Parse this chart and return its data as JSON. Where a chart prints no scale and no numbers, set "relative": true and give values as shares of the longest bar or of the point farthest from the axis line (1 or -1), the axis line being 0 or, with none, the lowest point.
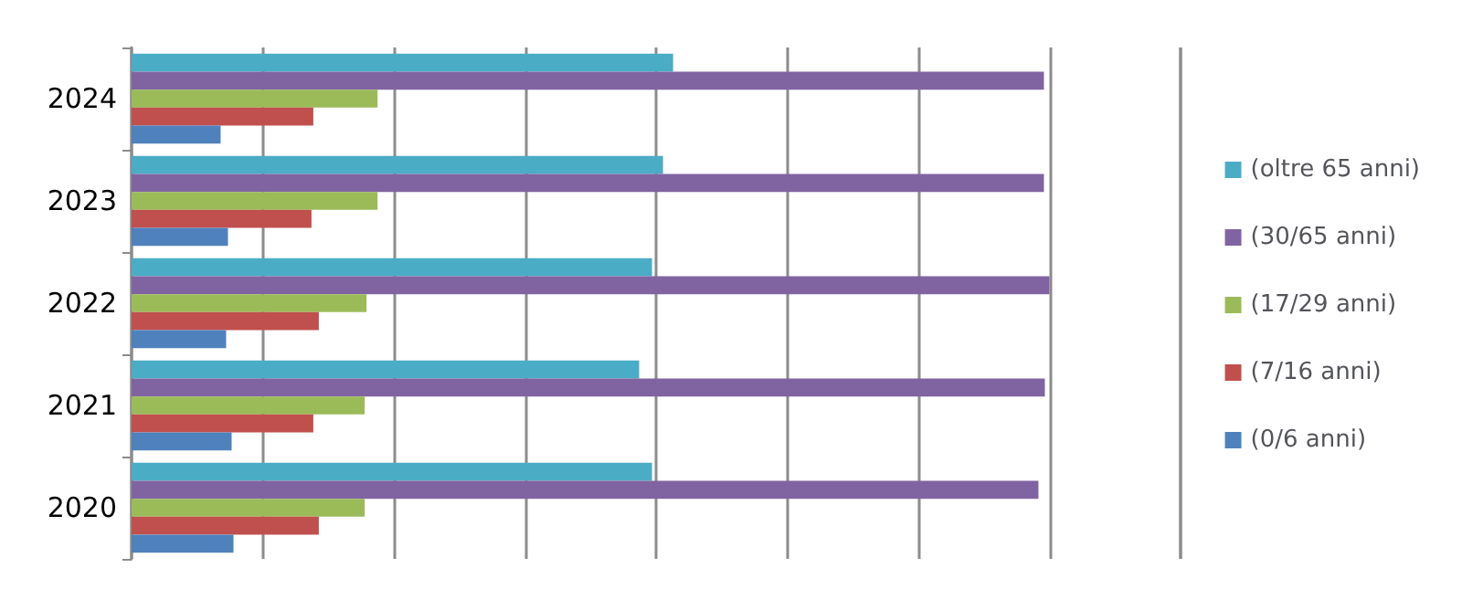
{
  "chart_data": {
    "type": "bar",
    "orientation": "horizontal",
    "relative": true,
    "grid": "x",
    "legend": "right",
    "categories": [
      "2024",
      "2023",
      "2022",
      "2021",
      "2020"
    ],
    "series": [
      {
        "name": "(oltre 65 anni)",
        "color": "#4bacc6",
        "values": [
          0.59,
          0.579,
          0.567,
          0.553,
          0.567
        ]
      },
      {
        "name": "(30/65 anni)",
        "color": "#8064a2",
        "values": [
          0.994,
          0.994,
          1,
          0.995,
          0.988
        ]
      },
      {
        "name": "(17/29 anni)",
        "color": "#9bbb59",
        "values": [
          0.268,
          0.268,
          0.256,
          0.254,
          0.254
        ]
      },
      {
        "name": "(7/16 anni)",
        "color": "#c0504d",
        "values": [
          0.198,
          0.196,
          0.204,
          0.198,
          0.204
        ]
      },
      {
        "name": "(0/6 anni)",
        "color": "#4f81bd",
        "values": [
          0.097,
          0.105,
          0.103,
          0.109,
          0.111
        ]
      }
    ]
  }
}
